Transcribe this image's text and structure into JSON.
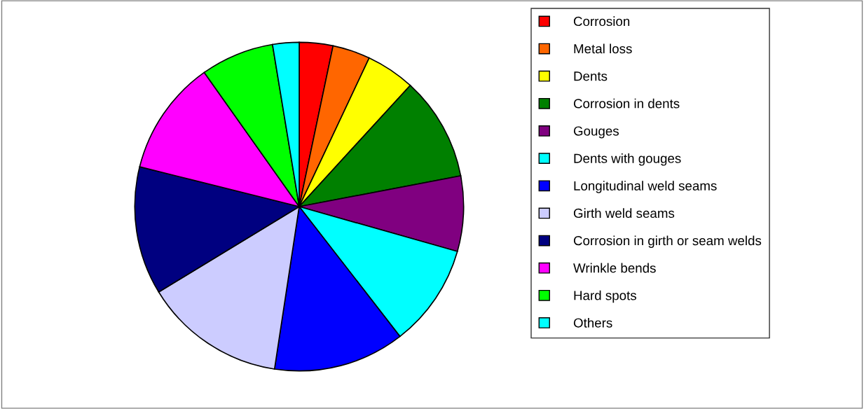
{
  "chart_data": {
    "type": "pie",
    "categories": [
      "Corrosion",
      "Metal loss",
      "Dents",
      "Corrosion in dents",
      "Gouges",
      "Dents with gouges",
      "Longitudinal weld seams",
      "Girth weld seams",
      "Corrosion in girth or seam welds",
      "Wrinkle bends",
      "Hard spots",
      "Others"
    ],
    "values": [
      3.3,
      3.7,
      4.8,
      10.2,
      7.4,
      10.1,
      12.9,
      13.9,
      12.6,
      11.3,
      7.2,
      2.6
    ],
    "colors": [
      "#ff0000",
      "#ff6600",
      "#ffff00",
      "#008000",
      "#800080",
      "#00ffff",
      "#0000ff",
      "#ccccff",
      "#000080",
      "#ff00ff",
      "#00ff00",
      "#00ffff"
    ],
    "legend": "right"
  }
}
